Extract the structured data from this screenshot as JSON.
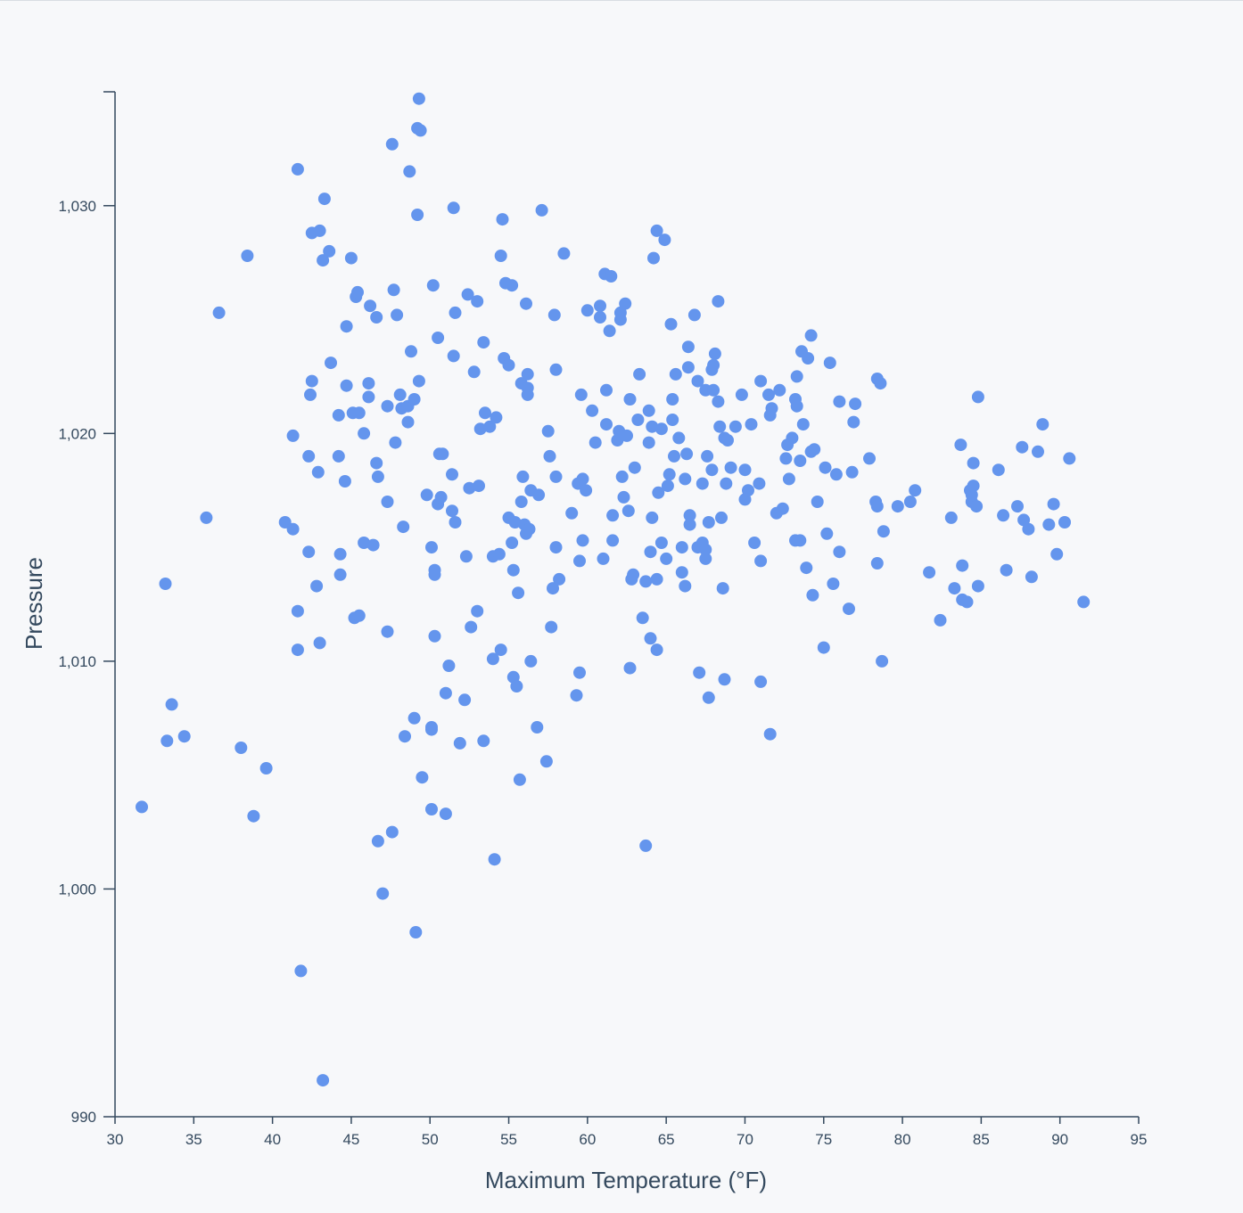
{
  "chart_data": {
    "type": "scatter",
    "title": "",
    "xlabel": "Maximum Temperature (°F)",
    "ylabel": "Pressure",
    "xlim": [
      30,
      95
    ],
    "ylim": [
      990,
      1035
    ],
    "x_ticks": [
      30,
      35,
      40,
      45,
      50,
      55,
      60,
      65,
      70,
      75,
      80,
      85,
      90,
      95
    ],
    "y_ticks": [
      990,
      1000,
      1010,
      1020,
      1030
    ],
    "x_tick_labels": [
      "30",
      "35",
      "40",
      "45",
      "50",
      "55",
      "60",
      "65",
      "70",
      "75",
      "80",
      "85",
      "90",
      "95"
    ],
    "y_tick_labels": [
      "990",
      "1,000",
      "1,010",
      "1,020",
      "1,030"
    ],
    "grid": false,
    "color": "#6495ed",
    "points": [
      [
        31.7,
        1003.6
      ],
      [
        33.2,
        1013.4
      ],
      [
        33.3,
        1006.5
      ],
      [
        33.6,
        1008.1
      ],
      [
        34.4,
        1006.7
      ],
      [
        35.8,
        1016.3
      ],
      [
        36.6,
        1025.3
      ],
      [
        38.0,
        1006.2
      ],
      [
        38.4,
        1027.8
      ],
      [
        38.8,
        1003.2
      ],
      [
        39.6,
        1005.3
      ],
      [
        40.8,
        1016.1
      ],
      [
        41.3,
        1019.9
      ],
      [
        41.3,
        1015.8
      ],
      [
        41.6,
        1031.6
      ],
      [
        41.6,
        1012.2
      ],
      [
        41.6,
        1010.5
      ],
      [
        41.8,
        996.4
      ],
      [
        42.3,
        1019.0
      ],
      [
        42.3,
        1014.8
      ],
      [
        42.4,
        1021.7
      ],
      [
        42.5,
        1028.8
      ],
      [
        42.5,
        1022.3
      ],
      [
        42.8,
        1013.3
      ],
      [
        42.9,
        1018.3
      ],
      [
        43.0,
        1028.9
      ],
      [
        43.0,
        1010.8
      ],
      [
        43.2,
        1027.6
      ],
      [
        43.3,
        1030.3
      ],
      [
        43.2,
        991.6
      ],
      [
        43.6,
        1028.0
      ],
      [
        43.7,
        1023.1
      ],
      [
        44.2,
        1020.8
      ],
      [
        44.2,
        1019.0
      ],
      [
        44.3,
        1014.7
      ],
      [
        44.3,
        1013.8
      ],
      [
        44.6,
        1017.9
      ],
      [
        44.7,
        1024.7
      ],
      [
        44.7,
        1022.1
      ],
      [
        45.0,
        1027.7
      ],
      [
        45.1,
        1020.9
      ],
      [
        45.2,
        1011.9
      ],
      [
        45.3,
        1026.0
      ],
      [
        45.4,
        1026.2
      ],
      [
        45.5,
        1020.9
      ],
      [
        45.5,
        1012.0
      ],
      [
        45.8,
        1020.0
      ],
      [
        45.8,
        1015.2
      ],
      [
        46.1,
        1022.2
      ],
      [
        46.1,
        1021.6
      ],
      [
        46.2,
        1025.6
      ],
      [
        46.4,
        1015.1
      ],
      [
        46.6,
        1025.1
      ],
      [
        46.6,
        1018.7
      ],
      [
        46.7,
        1018.1
      ],
      [
        46.7,
        1002.1
      ],
      [
        47.0,
        999.8
      ],
      [
        47.3,
        1021.2
      ],
      [
        47.3,
        1017.0
      ],
      [
        47.3,
        1011.3
      ],
      [
        47.6,
        1032.7
      ],
      [
        47.6,
        1002.5
      ],
      [
        47.7,
        1026.3
      ],
      [
        47.8,
        1019.6
      ],
      [
        47.9,
        1025.2
      ],
      [
        48.1,
        1021.7
      ],
      [
        48.2,
        1021.1
      ],
      [
        48.3,
        1015.9
      ],
      [
        48.4,
        1006.7
      ],
      [
        48.6,
        1021.2
      ],
      [
        48.6,
        1020.5
      ],
      [
        48.7,
        1031.5
      ],
      [
        48.8,
        1023.6
      ],
      [
        49.0,
        1021.5
      ],
      [
        49.0,
        1007.5
      ],
      [
        49.1,
        998.1
      ],
      [
        49.2,
        1033.4
      ],
      [
        49.2,
        1029.6
      ],
      [
        49.3,
        1022.3
      ],
      [
        49.3,
        1034.7
      ],
      [
        49.4,
        1033.3
      ],
      [
        49.5,
        1004.9
      ],
      [
        49.8,
        1017.3
      ],
      [
        50.1,
        1015.0
      ],
      [
        50.1,
        1007.0
      ],
      [
        50.1,
        1007.1
      ],
      [
        50.1,
        1003.5
      ],
      [
        50.2,
        1026.5
      ],
      [
        50.3,
        1014.0
      ],
      [
        50.3,
        1013.8
      ],
      [
        50.3,
        1011.1
      ],
      [
        50.5,
        1024.2
      ],
      [
        50.5,
        1016.9
      ],
      [
        50.6,
        1019.1
      ],
      [
        50.7,
        1017.2
      ],
      [
        50.8,
        1019.1
      ],
      [
        51.0,
        1008.6
      ],
      [
        51.0,
        1003.3
      ],
      [
        51.2,
        1009.8
      ],
      [
        51.4,
        1018.2
      ],
      [
        51.4,
        1016.6
      ],
      [
        51.5,
        1029.9
      ],
      [
        51.5,
        1023.4
      ],
      [
        51.6,
        1025.3
      ],
      [
        51.6,
        1016.1
      ],
      [
        51.9,
        1006.4
      ],
      [
        52.2,
        1008.3
      ],
      [
        52.3,
        1014.6
      ],
      [
        52.4,
        1026.1
      ],
      [
        52.5,
        1017.6
      ],
      [
        52.6,
        1011.5
      ],
      [
        52.8,
        1022.7
      ],
      [
        53.0,
        1025.8
      ],
      [
        53.0,
        1012.2
      ],
      [
        53.1,
        1017.7
      ],
      [
        53.2,
        1020.2
      ],
      [
        53.4,
        1024.0
      ],
      [
        53.4,
        1006.5
      ],
      [
        53.5,
        1020.9
      ],
      [
        53.8,
        1020.3
      ],
      [
        54.0,
        1014.6
      ],
      [
        54.0,
        1010.1
      ],
      [
        54.1,
        1001.3
      ],
      [
        54.2,
        1020.7
      ],
      [
        54.4,
        1014.7
      ],
      [
        54.5,
        1010.5
      ],
      [
        54.5,
        1027.8
      ],
      [
        54.6,
        1029.4
      ],
      [
        54.7,
        1023.3
      ],
      [
        54.8,
        1026.6
      ],
      [
        55.0,
        1023.0
      ],
      [
        55.0,
        1016.3
      ],
      [
        55.2,
        1026.5
      ],
      [
        55.2,
        1015.2
      ],
      [
        55.3,
        1014.0
      ],
      [
        55.3,
        1009.3
      ],
      [
        55.4,
        1016.1
      ],
      [
        55.5,
        1008.9
      ],
      [
        55.6,
        1013.0
      ],
      [
        55.7,
        1004.8
      ],
      [
        55.8,
        1022.2
      ],
      [
        55.8,
        1017.0
      ],
      [
        55.9,
        1018.1
      ],
      [
        56.0,
        1016.0
      ],
      [
        56.1,
        1015.6
      ],
      [
        56.1,
        1025.7
      ],
      [
        56.2,
        1022.6
      ],
      [
        56.2,
        1022.0
      ],
      [
        56.2,
        1021.7
      ],
      [
        56.3,
        1015.8
      ],
      [
        56.4,
        1010.0
      ],
      [
        56.4,
        1017.5
      ],
      [
        56.8,
        1007.1
      ],
      [
        56.9,
        1017.3
      ],
      [
        57.1,
        1029.8
      ],
      [
        57.4,
        1005.6
      ],
      [
        57.5,
        1020.1
      ],
      [
        57.6,
        1019.0
      ],
      [
        57.7,
        1011.5
      ],
      [
        57.8,
        1013.2
      ],
      [
        57.9,
        1025.2
      ],
      [
        58.0,
        1022.8
      ],
      [
        58.0,
        1018.1
      ],
      [
        58.0,
        1015.0
      ],
      [
        58.2,
        1013.6
      ],
      [
        58.5,
        1027.9
      ],
      [
        59.0,
        1016.5
      ],
      [
        59.3,
        1008.5
      ],
      [
        59.4,
        1017.8
      ],
      [
        59.5,
        1014.4
      ],
      [
        59.5,
        1009.5
      ],
      [
        59.6,
        1021.7
      ],
      [
        59.7,
        1018.0
      ],
      [
        59.7,
        1015.3
      ],
      [
        59.9,
        1017.5
      ],
      [
        60.0,
        1025.4
      ],
      [
        60.3,
        1021.0
      ],
      [
        60.5,
        1019.6
      ],
      [
        60.8,
        1025.1
      ],
      [
        60.8,
        1025.6
      ],
      [
        61.0,
        1014.5
      ],
      [
        61.1,
        1027.0
      ],
      [
        61.2,
        1020.4
      ],
      [
        61.2,
        1021.9
      ],
      [
        61.4,
        1024.5
      ],
      [
        61.5,
        1026.9
      ],
      [
        61.6,
        1016.4
      ],
      [
        61.6,
        1015.3
      ],
      [
        61.9,
        1019.7
      ],
      [
        62.0,
        1020.1
      ],
      [
        62.1,
        1025.3
      ],
      [
        62.1,
        1025.0
      ],
      [
        62.2,
        1018.1
      ],
      [
        62.3,
        1017.2
      ],
      [
        62.4,
        1025.7
      ],
      [
        62.5,
        1019.9
      ],
      [
        62.6,
        1016.6
      ],
      [
        62.7,
        1021.5
      ],
      [
        62.7,
        1009.7
      ],
      [
        62.8,
        1013.6
      ],
      [
        62.9,
        1013.8
      ],
      [
        63.0,
        1018.5
      ],
      [
        63.2,
        1020.6
      ],
      [
        63.3,
        1022.6
      ],
      [
        63.5,
        1011.9
      ],
      [
        63.7,
        1013.5
      ],
      [
        63.7,
        1001.9
      ],
      [
        63.9,
        1021.0
      ],
      [
        63.9,
        1019.6
      ],
      [
        64.0,
        1014.8
      ],
      [
        64.0,
        1011.0
      ],
      [
        64.1,
        1020.3
      ],
      [
        64.1,
        1016.3
      ],
      [
        64.2,
        1027.7
      ],
      [
        64.4,
        1028.9
      ],
      [
        64.4,
        1013.6
      ],
      [
        64.4,
        1010.5
      ],
      [
        64.5,
        1017.4
      ],
      [
        64.7,
        1020.2
      ],
      [
        64.7,
        1015.2
      ],
      [
        64.9,
        1028.5
      ],
      [
        65.0,
        1014.5
      ],
      [
        65.1,
        1017.7
      ],
      [
        65.2,
        1018.2
      ],
      [
        65.3,
        1024.8
      ],
      [
        65.4,
        1021.5
      ],
      [
        65.4,
        1020.6
      ],
      [
        65.5,
        1019.0
      ],
      [
        65.6,
        1022.6
      ],
      [
        65.8,
        1019.8
      ],
      [
        66.0,
        1015.0
      ],
      [
        66.0,
        1013.9
      ],
      [
        66.2,
        1018.0
      ],
      [
        66.2,
        1013.3
      ],
      [
        66.3,
        1019.1
      ],
      [
        66.4,
        1023.8
      ],
      [
        66.4,
        1022.9
      ],
      [
        66.5,
        1016.0
      ],
      [
        66.5,
        1016.4
      ],
      [
        66.8,
        1025.2
      ],
      [
        67.0,
        1015.0
      ],
      [
        67.0,
        1022.3
      ],
      [
        67.1,
        1009.5
      ],
      [
        67.3,
        1015.2
      ],
      [
        67.3,
        1017.8
      ],
      [
        67.5,
        1014.9
      ],
      [
        67.5,
        1014.5
      ],
      [
        67.5,
        1021.9
      ],
      [
        67.6,
        1019.0
      ],
      [
        67.7,
        1016.1
      ],
      [
        67.7,
        1008.4
      ],
      [
        67.9,
        1018.4
      ],
      [
        67.9,
        1022.8
      ],
      [
        68.0,
        1021.9
      ],
      [
        68.0,
        1023.0
      ],
      [
        68.1,
        1023.5
      ],
      [
        68.3,
        1021.4
      ],
      [
        68.3,
        1025.8
      ],
      [
        68.4,
        1020.3
      ],
      [
        68.5,
        1016.3
      ],
      [
        68.6,
        1013.2
      ],
      [
        68.7,
        1019.8
      ],
      [
        68.7,
        1009.2
      ],
      [
        68.8,
        1017.8
      ],
      [
        68.9,
        1019.7
      ],
      [
        69.1,
        1018.5
      ],
      [
        69.4,
        1020.3
      ],
      [
        69.8,
        1021.7
      ],
      [
        70.0,
        1018.4
      ],
      [
        70.0,
        1017.1
      ],
      [
        70.2,
        1017.5
      ],
      [
        70.4,
        1020.4
      ],
      [
        70.6,
        1015.2
      ],
      [
        70.9,
        1017.8
      ],
      [
        71.0,
        1022.3
      ],
      [
        71.0,
        1014.4
      ],
      [
        71.0,
        1009.1
      ],
      [
        71.5,
        1021.7
      ],
      [
        71.6,
        1020.8
      ],
      [
        71.6,
        1006.8
      ],
      [
        71.7,
        1021.1
      ],
      [
        72.0,
        1016.5
      ],
      [
        72.2,
        1021.9
      ],
      [
        72.4,
        1016.7
      ],
      [
        72.6,
        1018.9
      ],
      [
        72.7,
        1019.5
      ],
      [
        72.8,
        1018.0
      ],
      [
        73.0,
        1019.8
      ],
      [
        73.2,
        1015.3
      ],
      [
        73.2,
        1021.5
      ],
      [
        73.3,
        1022.5
      ],
      [
        73.3,
        1021.2
      ],
      [
        73.5,
        1018.8
      ],
      [
        73.5,
        1015.3
      ],
      [
        73.6,
        1023.6
      ],
      [
        73.7,
        1020.4
      ],
      [
        73.9,
        1014.1
      ],
      [
        74.0,
        1023.3
      ],
      [
        74.2,
        1024.3
      ],
      [
        74.2,
        1019.2
      ],
      [
        74.3,
        1012.9
      ],
      [
        74.4,
        1019.3
      ],
      [
        74.6,
        1017.0
      ],
      [
        75.0,
        1010.6
      ],
      [
        75.1,
        1018.5
      ],
      [
        75.2,
        1015.6
      ],
      [
        75.4,
        1023.1
      ],
      [
        75.6,
        1013.4
      ],
      [
        75.8,
        1018.2
      ],
      [
        76.0,
        1021.4
      ],
      [
        76.0,
        1014.8
      ],
      [
        76.6,
        1012.3
      ],
      [
        76.8,
        1018.3
      ],
      [
        76.9,
        1020.5
      ],
      [
        77.0,
        1021.3
      ],
      [
        77.9,
        1018.9
      ],
      [
        78.3,
        1017.0
      ],
      [
        78.4,
        1016.8
      ],
      [
        78.4,
        1014.3
      ],
      [
        78.4,
        1022.4
      ],
      [
        78.6,
        1022.2
      ],
      [
        78.7,
        1010.0
      ],
      [
        78.8,
        1015.7
      ],
      [
        79.7,
        1016.8
      ],
      [
        80.5,
        1017.0
      ],
      [
        80.8,
        1017.5
      ],
      [
        81.7,
        1013.9
      ],
      [
        82.4,
        1011.8
      ],
      [
        83.1,
        1016.3
      ],
      [
        83.3,
        1013.2
      ],
      [
        83.7,
        1019.5
      ],
      [
        83.8,
        1014.2
      ],
      [
        83.8,
        1012.7
      ],
      [
        84.1,
        1012.6
      ],
      [
        84.3,
        1017.5
      ],
      [
        84.4,
        1017.0
      ],
      [
        84.4,
        1017.3
      ],
      [
        84.5,
        1017.7
      ],
      [
        84.5,
        1018.7
      ],
      [
        84.7,
        1016.8
      ],
      [
        84.8,
        1013.3
      ],
      [
        84.8,
        1021.6
      ],
      [
        86.1,
        1018.4
      ],
      [
        86.4,
        1016.4
      ],
      [
        86.6,
        1014.0
      ],
      [
        87.3,
        1016.8
      ],
      [
        87.6,
        1019.4
      ],
      [
        87.7,
        1016.2
      ],
      [
        88.0,
        1015.8
      ],
      [
        88.2,
        1013.7
      ],
      [
        88.6,
        1019.2
      ],
      [
        88.9,
        1020.4
      ],
      [
        89.3,
        1016.0
      ],
      [
        89.6,
        1016.9
      ],
      [
        89.8,
        1014.7
      ],
      [
        90.3,
        1016.1
      ],
      [
        90.6,
        1018.9
      ],
      [
        91.5,
        1012.6
      ]
    ]
  }
}
